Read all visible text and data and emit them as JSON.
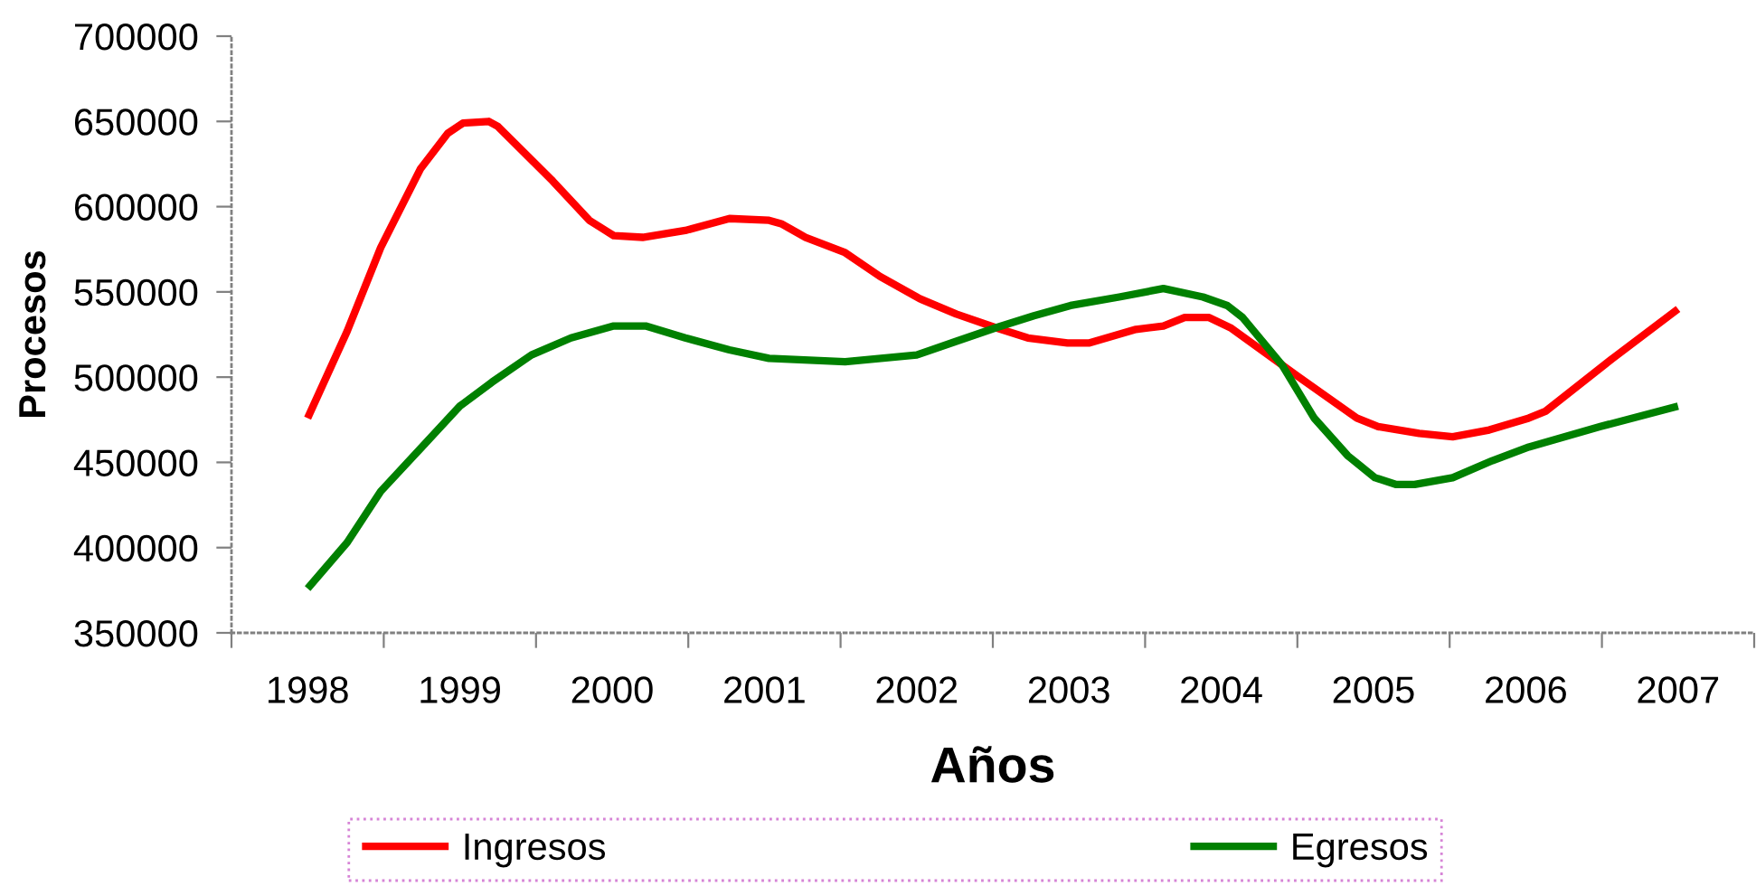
{
  "chart_data": {
    "type": "line",
    "xlabel": "Años",
    "ylabel": "Procesos",
    "xlim": [
      1997.5,
      2007.5
    ],
    "xticks": [
      {
        "value": 1997.5,
        "label": null
      },
      1998,
      {
        "value": 1998.5,
        "label": null
      },
      1999,
      {
        "value": 1999.5,
        "label": null
      },
      2000,
      {
        "value": 2000.5,
        "label": null
      },
      2001,
      {
        "value": 2001.5,
        "label": null
      },
      2002,
      {
        "value": 2002.5,
        "label": null
      },
      2003,
      {
        "value": 2003.5,
        "label": null
      },
      2004,
      {
        "value": 2004.5,
        "label": null
      },
      2005,
      {
        "value": 2005.5,
        "label": null
      },
      2006,
      {
        "value": 2006.5,
        "label": null
      },
      2007,
      {
        "value": 2007.5,
        "label": null
      }
    ],
    "ylim": [
      350000,
      700000
    ],
    "yticks": [
      350000,
      400000,
      450000,
      500000,
      550000,
      600000,
      650000,
      700000
    ],
    "grid": false,
    "legend": "bottom",
    "marker": "none",
    "line_style": "solid",
    "series": [
      {
        "name": "Ingresos",
        "color": "#ff0000",
        "x": [
          1998.0,
          1998.26,
          1998.48,
          1998.74,
          1998.92,
          1999.02,
          1999.19,
          1999.25,
          1999.61,
          1999.85,
          2000.01,
          2000.2,
          2000.48,
          2000.77,
          2001.03,
          2001.11,
          2001.27,
          2001.53,
          2001.76,
          2002.02,
          2002.26,
          2002.52,
          2002.73,
          2002.99,
          2003.13,
          2003.44,
          2003.62,
          2003.76,
          2003.92,
          2004.06,
          2004.51,
          2004.89,
          2005.03,
          2005.3,
          2005.52,
          2005.76,
          2006.02,
          2006.13,
          2006.57,
          2007.0
        ],
        "values": [
          476000,
          527000,
          576000,
          622000,
          643000,
          649000,
          650000,
          647000,
          615000,
          592000,
          583000,
          582000,
          586000,
          593000,
          592000,
          590000,
          582000,
          573000,
          559000,
          546000,
          537000,
          529000,
          523000,
          520000,
          520000,
          528000,
          530000,
          535000,
          535000,
          529000,
          500000,
          476000,
          471000,
          467000,
          465000,
          469000,
          476000,
          480000,
          511000,
          540000
        ]
      },
      {
        "name": "Egresos",
        "color": "#008000",
        "x": [
          1998.0,
          1998.26,
          1998.48,
          1998.74,
          1999.0,
          1999.21,
          1999.47,
          1999.73,
          2000.01,
          2000.22,
          2000.48,
          2000.77,
          2001.03,
          2001.53,
          2002.0,
          2002.26,
          2002.52,
          2002.77,
          2003.01,
          2003.33,
          2003.62,
          2003.88,
          2004.04,
          2004.14,
          2004.4,
          2004.61,
          2004.83,
          2005.01,
          2005.15,
          2005.27,
          2005.52,
          2005.78,
          2006.02,
          2006.49,
          2007.0
        ],
        "values": [
          376000,
          403000,
          433000,
          458000,
          483000,
          497000,
          513000,
          523000,
          530000,
          530000,
          523000,
          516000,
          511000,
          509000,
          513000,
          521000,
          529000,
          536000,
          542000,
          547000,
          552000,
          547000,
          542000,
          535000,
          507000,
          476000,
          454000,
          441000,
          437000,
          437000,
          441000,
          451000,
          459000,
          471000,
          483000
        ]
      }
    ]
  }
}
